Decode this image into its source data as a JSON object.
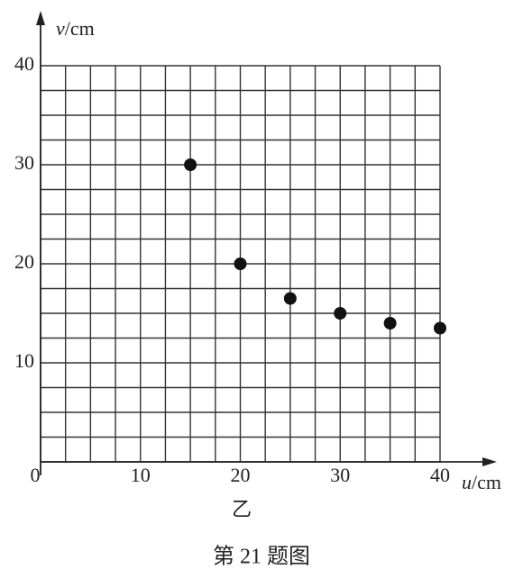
{
  "chart_data": {
    "type": "scatter",
    "xlabel": [
      "u",
      "/cm"
    ],
    "ylabel": [
      "v",
      "/cm"
    ],
    "caption": "乙",
    "figure_title": "第 21 题图",
    "x": [
      15,
      20,
      25,
      30,
      35,
      40
    ],
    "series": [
      {
        "color": "#111111",
        "values": [
          30,
          20,
          16.5,
          15,
          14,
          13.5
        ]
      }
    ],
    "xlim": [
      0,
      40
    ],
    "ylim": [
      0,
      40
    ],
    "xticks": [
      0,
      10,
      20,
      30,
      40
    ],
    "yticks": [
      10,
      20,
      30,
      40
    ],
    "xgrid": [
      0,
      2.5,
      5,
      7.5,
      10,
      12.5,
      15,
      17.5,
      20,
      22.5,
      25,
      27.5,
      30,
      32.5,
      35,
      37.5,
      40
    ],
    "ygrid": [
      0,
      2.5,
      5,
      7.5,
      10,
      12.5,
      15,
      17.5,
      20,
      22.5,
      25,
      27.5,
      30,
      32.5,
      35,
      37.5,
      40
    ]
  }
}
